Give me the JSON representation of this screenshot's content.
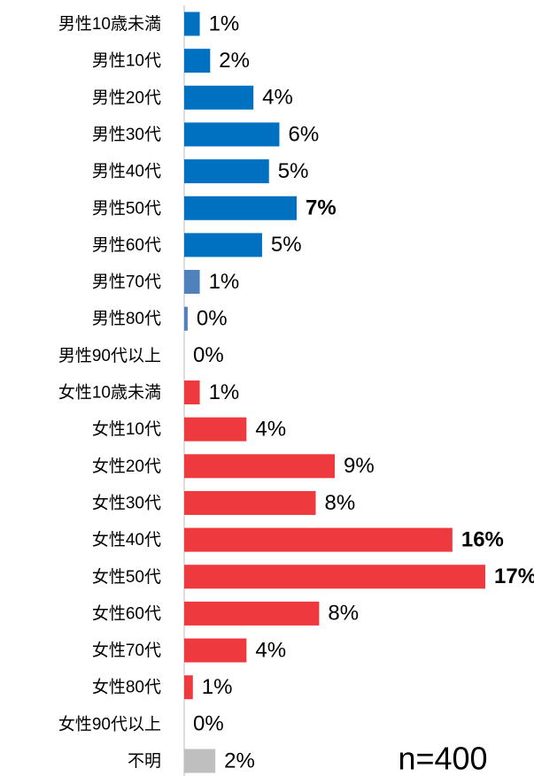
{
  "chart_data": {
    "type": "hbar",
    "categories": [
      "男性10歳未満",
      "男性10代",
      "男性20代",
      "男性30代",
      "男性40代",
      "男性50代",
      "男性60代",
      "男性70代",
      "男性80代",
      "男性90代以上",
      "女性10歳未満",
      "女性10代",
      "女性20代",
      "女性30代",
      "女性40代",
      "女性50代",
      "女性60代",
      "女性70代",
      "女性80代",
      "女性90代以上",
      "不明"
    ],
    "values": [
      0.9,
      1.5,
      4.0,
      5.5,
      4.9,
      6.5,
      4.5,
      0.9,
      0.2,
      0,
      0.9,
      3.6,
      8.7,
      7.6,
      15.5,
      17.4,
      7.8,
      3.6,
      0.5,
      0,
      1.8
    ],
    "value_labels": [
      "1%",
      "2%",
      "4%",
      "6%",
      "5%",
      "7%",
      "5%",
      "1%",
      "0%",
      "0%",
      "1%",
      "4%",
      "9%",
      "8%",
      "16%",
      "17%",
      "8%",
      "4%",
      "1%",
      "0%",
      "2%"
    ],
    "colors": [
      "#0070c0",
      "#0070c0",
      "#0070c0",
      "#0070c0",
      "#0070c0",
      "#0070c0",
      "#0070c0",
      "#4f81bd",
      "#4f81bd",
      "#4f81bd",
      "#ee3a3f",
      "#ee3a3f",
      "#ee3a3f",
      "#ee3a3f",
      "#ee3a3f",
      "#ee3a3f",
      "#ee3a3f",
      "#ee3a3f",
      "#ee3a3f",
      "#ee3a3f",
      "#bfbfbf"
    ],
    "bold_labels": [
      5,
      14,
      15
    ],
    "xlim": [
      0,
      17.4
    ],
    "annotation": "n=400"
  }
}
